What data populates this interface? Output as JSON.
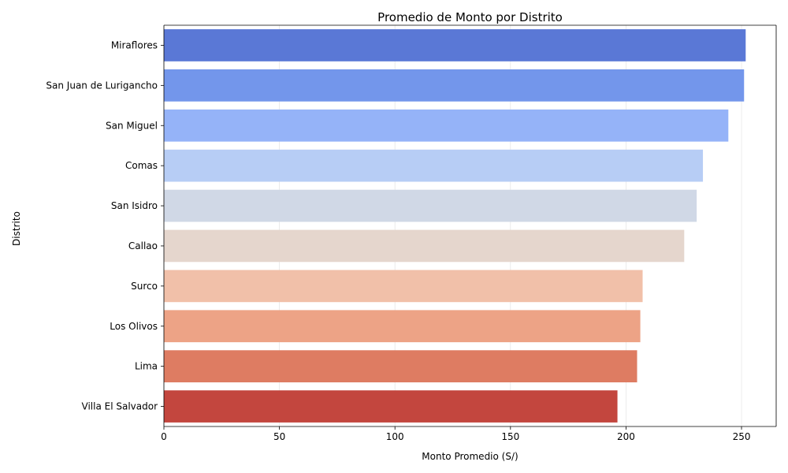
{
  "chart_data": {
    "type": "bar",
    "orientation": "horizontal",
    "title": "Promedio de Monto por Distrito",
    "xlabel": "Monto Promedio (S/)",
    "ylabel": "Distrito",
    "categories": [
      "Miraflores",
      "San Juan de Lurigancho",
      "San Miguel",
      "Comas",
      "San Isidro",
      "Callao",
      "Surco",
      "Los Olivos",
      "Lima",
      "Villa El Salvador"
    ],
    "values": [
      251.8,
      251.1,
      244.3,
      233.3,
      230.6,
      225.2,
      207.2,
      206.2,
      204.8,
      196.3
    ],
    "colors": [
      "#5a78d6",
      "#7396eb",
      "#95b3f8",
      "#b7cdf5",
      "#d0d8e6",
      "#e5d6cd",
      "#f1c0a9",
      "#eda386",
      "#de7c62",
      "#c3463e"
    ],
    "xlim": [
      0,
      265
    ],
    "xticks": [
      0,
      50,
      100,
      150,
      200,
      250
    ],
    "grid": "x"
  }
}
